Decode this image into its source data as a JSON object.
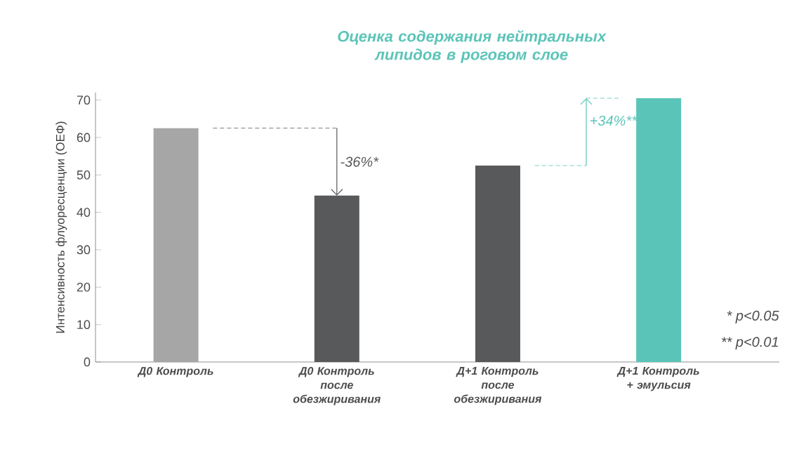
{
  "chart_data": {
    "type": "bar",
    "title": "Оценка содержания нейтральных липидов в роговом слое",
    "ylabel": "Интенсивность флуоресценции (ОЕФ)",
    "categories": [
      "Д0 Контроль",
      "Д0 Контроль после обезжиривания",
      "Д+1 Контроль после обезжиривания",
      "Д+1 Контроль + эмульсия"
    ],
    "values": [
      62.5,
      44.5,
      52.5,
      70.5
    ],
    "colors": [
      "#a6a6a6",
      "#58595b",
      "#58595b",
      "#5bc4b8"
    ],
    "ylim": [
      0,
      72
    ],
    "yticks": [
      0,
      10,
      20,
      30,
      40,
      50,
      60,
      70
    ],
    "annotations": [
      {
        "text": "-36%*",
        "x": "Д0 Контроль после обезжиривания",
        "y": 44.5
      },
      {
        "text": "+34%**",
        "x": "Д+1 Контроль + эмульсия",
        "y": 70.5
      },
      "* p<0.05",
      "** p<0.01"
    ]
  }
}
